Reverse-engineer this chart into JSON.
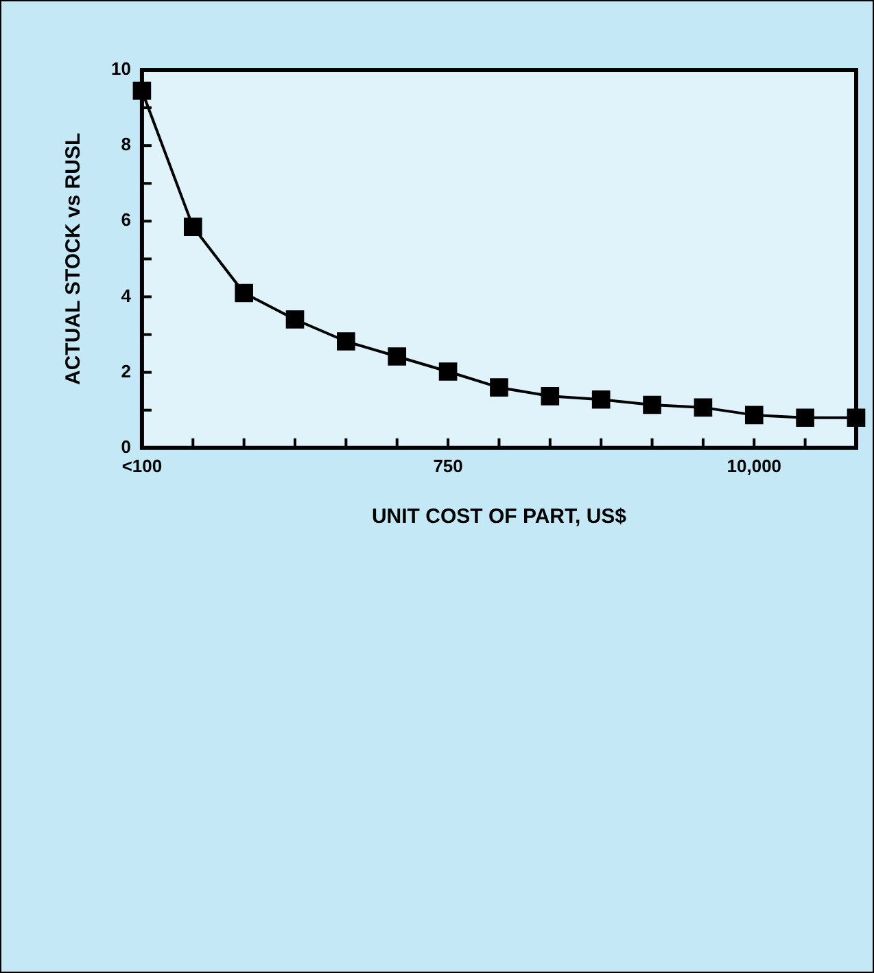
{
  "chart_data": {
    "type": "line",
    "xlabel": "UNIT COST OF PART, US$",
    "ylabel": "ACTUAL STOCK vs RUSL",
    "categories": [
      "<100",
      null,
      null,
      null,
      null,
      null,
      "750",
      null,
      null,
      null,
      null,
      null,
      "10,000",
      null,
      null
    ],
    "series": [
      {
        "color": "#000000",
        "values": [
          9.45,
          5.85,
          4.1,
          3.4,
          2.82,
          2.42,
          2.02,
          1.6,
          1.37,
          1.28,
          1.14,
          1.07,
          0.87,
          0.8,
          0.8
        ]
      }
    ],
    "ylim": [
      0,
      10
    ],
    "yticks": [
      0,
      {
        "value": 1,
        "label": null
      },
      2,
      {
        "value": 3,
        "label": null
      },
      4,
      {
        "value": 5,
        "label": null
      },
      6,
      {
        "value": 7,
        "label": null
      },
      8,
      {
        "value": 9,
        "label": null
      },
      10
    ],
    "grid": false,
    "legend": false,
    "marker": "square",
    "line_style": "solid"
  }
}
